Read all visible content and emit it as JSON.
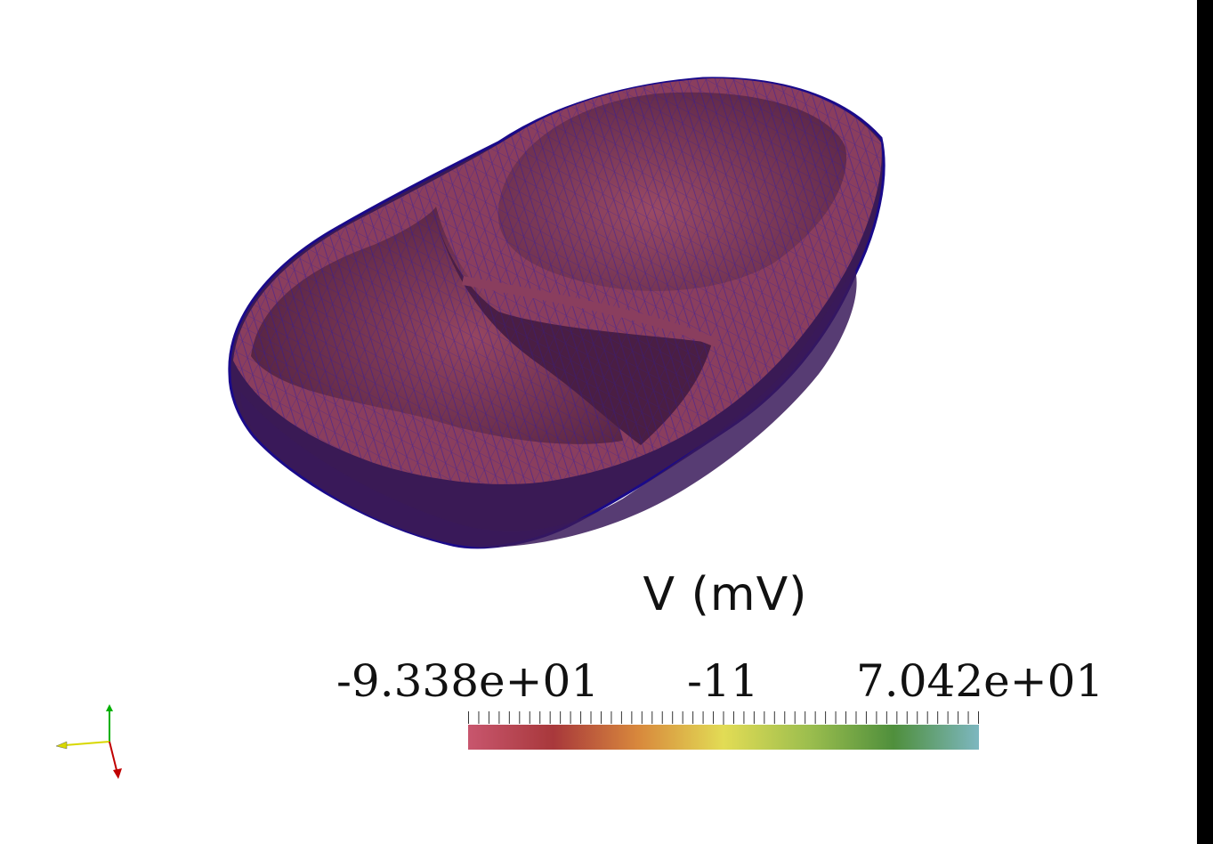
{
  "legend": {
    "title": "V (mV)",
    "min_label": "-9.338e+01",
    "mid_label": "-11",
    "max_label": "7.042e+01",
    "range": [
      -93.38,
      70.42
    ],
    "colormap_stops": [
      "#c8566e",
      "#a8383b",
      "#d8883c",
      "#e2dc55",
      "#9cbe4e",
      "#4f8f3c",
      "#7db7c0"
    ]
  },
  "colors": {
    "mesh_fill": "#8a3e5e",
    "mesh_wire": "#2a1aa8",
    "background": "#ffffff",
    "axis_x": "#c00000",
    "axis_y": "#00b000",
    "axis_z": "#d8d800"
  },
  "icons": {
    "orientation_axes": "xyz-axes-icon"
  }
}
